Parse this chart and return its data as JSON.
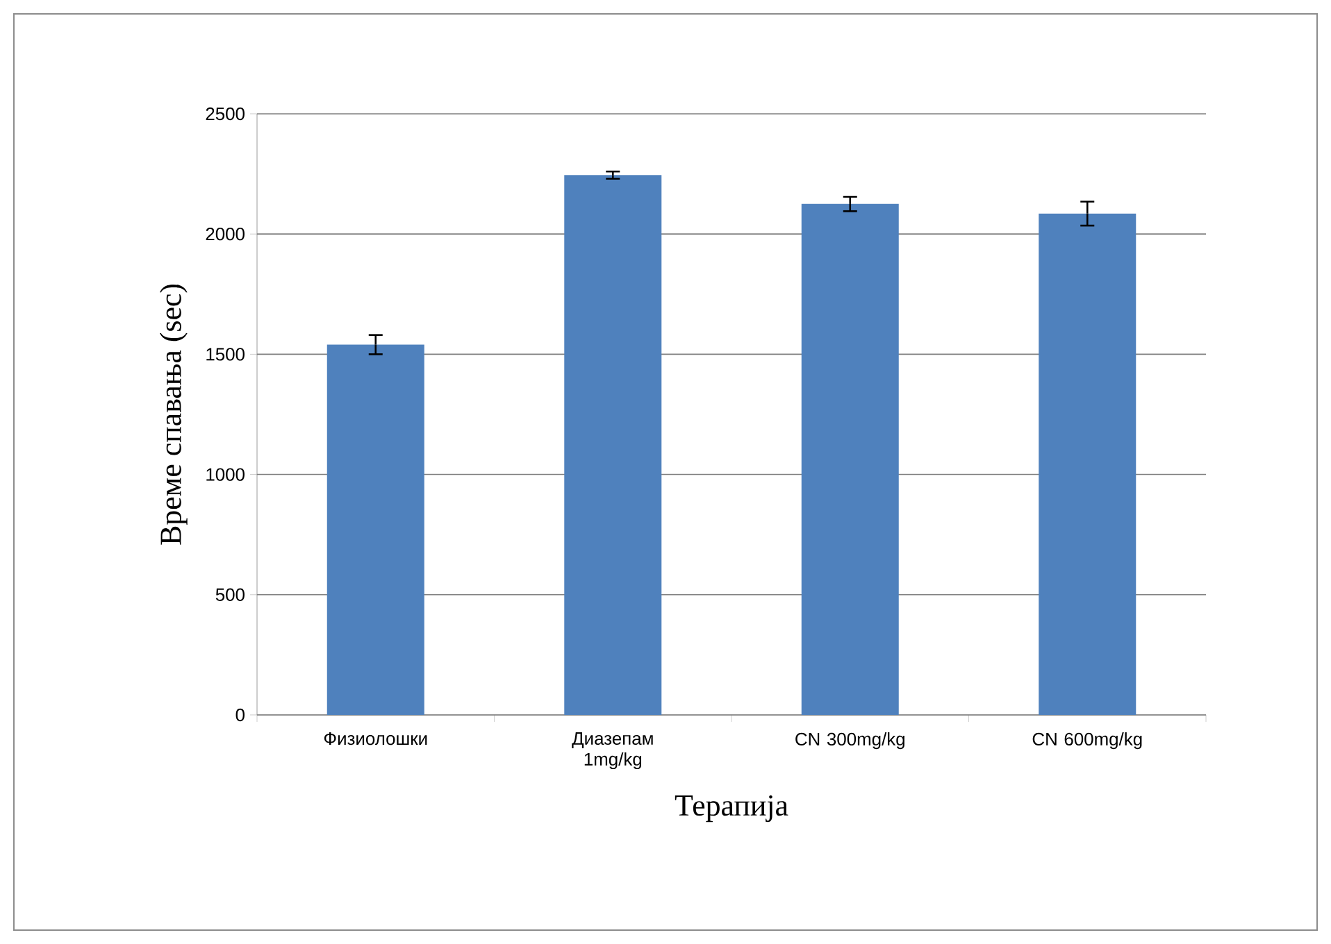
{
  "chart_data": {
    "type": "bar",
    "xlabel": "Терапија",
    "ylabel": "Време спавања  (sec)",
    "categories": [
      "Физиолошки",
      "Диазепам 1mg/kg",
      "CN 300mg/kg",
      "CN 600mg/kg"
    ],
    "values": [
      1540,
      2245,
      2125,
      2085
    ],
    "errors": [
      40,
      15,
      30,
      50
    ],
    "color": "#4f81bd",
    "ylim": [
      0,
      2500
    ],
    "yticks": [
      0,
      500,
      1000,
      1500,
      2000,
      2500
    ],
    "grid": "y"
  }
}
